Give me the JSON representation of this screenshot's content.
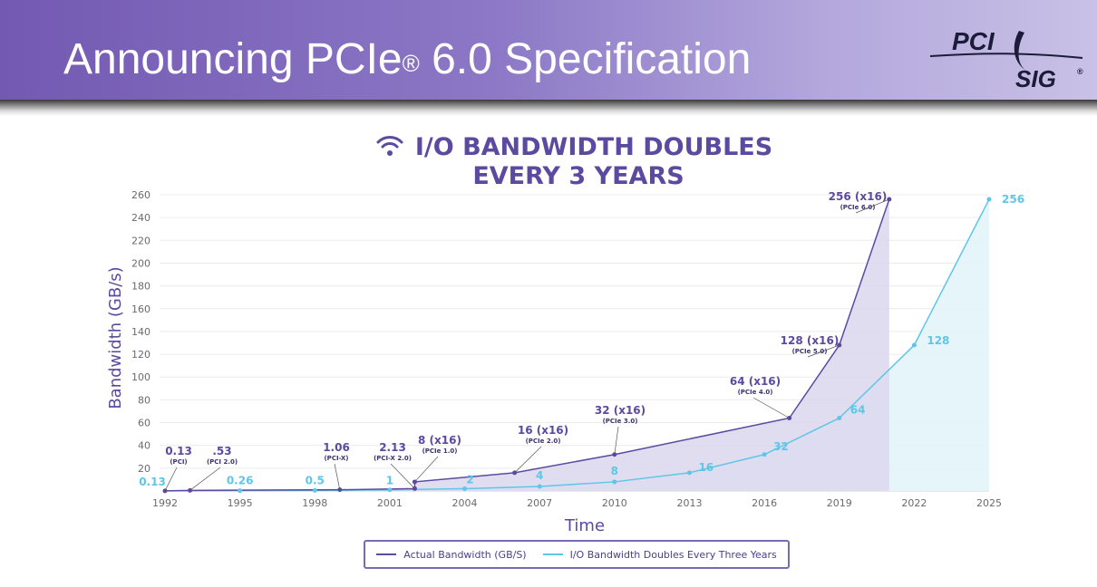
{
  "header": {
    "title_main": "Announcing PCIe",
    "title_reg": "®",
    "title_rest": " 6.0 Specification",
    "logo_top": "PCI",
    "logo_bottom": "SIG",
    "logo_reg": "®"
  },
  "colors": {
    "actual": "#5b4aa0",
    "actual_fill": "#dcd7ee",
    "projected": "#5ec6e6",
    "projected_fill": "#e3f4fa",
    "title": "#5b4aa0",
    "axis_text": "#6a6a6a"
  },
  "icons": {
    "title_icon": "wifi-icon"
  },
  "chart_data": {
    "type": "line",
    "title_line1": "I/O BANDWIDTH DOUBLES",
    "title_line2": "EVERY 3 YEARS",
    "xlabel": "Time",
    "ylabel": "Bandwidth (GB/s)",
    "xlim": [
      1992,
      2025
    ],
    "ylim": [
      0,
      260
    ],
    "x_ticks": [
      1992,
      1995,
      1998,
      2001,
      2004,
      2007,
      2010,
      2013,
      2016,
      2019,
      2022,
      2025
    ],
    "y_ticks": [
      20,
      40,
      60,
      80,
      100,
      120,
      140,
      160,
      180,
      200,
      220,
      240,
      260
    ],
    "legend_position": "bottom-center",
    "series": [
      {
        "name": "Actual Bandwidth (GB/S)",
        "points": [
          {
            "x": 1992,
            "y": 0.13
          },
          {
            "x": 1993,
            "y": 0.53
          },
          {
            "x": 1999,
            "y": 1.06
          },
          {
            "x": 2002,
            "y": 2.13
          },
          {
            "x": 2002,
            "y": 8
          },
          {
            "x": 2006,
            "y": 16
          },
          {
            "x": 2010,
            "y": 32
          },
          {
            "x": 2017,
            "y": 64
          },
          {
            "x": 2019,
            "y": 128
          },
          {
            "x": 2021,
            "y": 256
          }
        ],
        "labels": [
          {
            "x": 1992,
            "y": 0.13,
            "value": "0.13",
            "sub": "(PCI)"
          },
          {
            "x": 1993,
            "y": 0.53,
            "value": ".53",
            "sub": "(PCI 2.0)"
          },
          {
            "x": 1999,
            "y": 1.06,
            "value": "1.06",
            "sub": "(PCI-X)"
          },
          {
            "x": 2002,
            "y": 2.13,
            "value": "2.13",
            "sub": "(PCI-X 2.0)"
          },
          {
            "x": 2002,
            "y": 8,
            "value": "8 (x16)",
            "sub": "(PCIe 1.0)"
          },
          {
            "x": 2006,
            "y": 16,
            "value": "16 (x16)",
            "sub": "(PCIe 2.0)"
          },
          {
            "x": 2010,
            "y": 32,
            "value": "32 (x16)",
            "sub": "(PCIe 3.0)"
          },
          {
            "x": 2017,
            "y": 64,
            "value": "64 (x16)",
            "sub": "(PCIe 4.0)"
          },
          {
            "x": 2019,
            "y": 128,
            "value": "128 (x16)",
            "sub": "(PCIe 5.0)"
          },
          {
            "x": 2021,
            "y": 256,
            "value": "256 (x16)",
            "sub": "(PCIe 6.0)"
          }
        ]
      },
      {
        "name": "I/O Bandwidth Doubles Every Three Years",
        "points": [
          {
            "x": 1992,
            "y": 0.13
          },
          {
            "x": 1995,
            "y": 0.26
          },
          {
            "x": 1998,
            "y": 0.5
          },
          {
            "x": 2001,
            "y": 1
          },
          {
            "x": 2004,
            "y": 2
          },
          {
            "x": 2007,
            "y": 4
          },
          {
            "x": 2010,
            "y": 8
          },
          {
            "x": 2013,
            "y": 16
          },
          {
            "x": 2016,
            "y": 32
          },
          {
            "x": 2019,
            "y": 64
          },
          {
            "x": 2022,
            "y": 128
          },
          {
            "x": 2025,
            "y": 256
          }
        ],
        "labels": [
          "0.13",
          "0.26",
          "0.5",
          "1",
          "2",
          "4",
          "8",
          "16",
          "32",
          "64",
          "128",
          "256"
        ]
      }
    ]
  }
}
